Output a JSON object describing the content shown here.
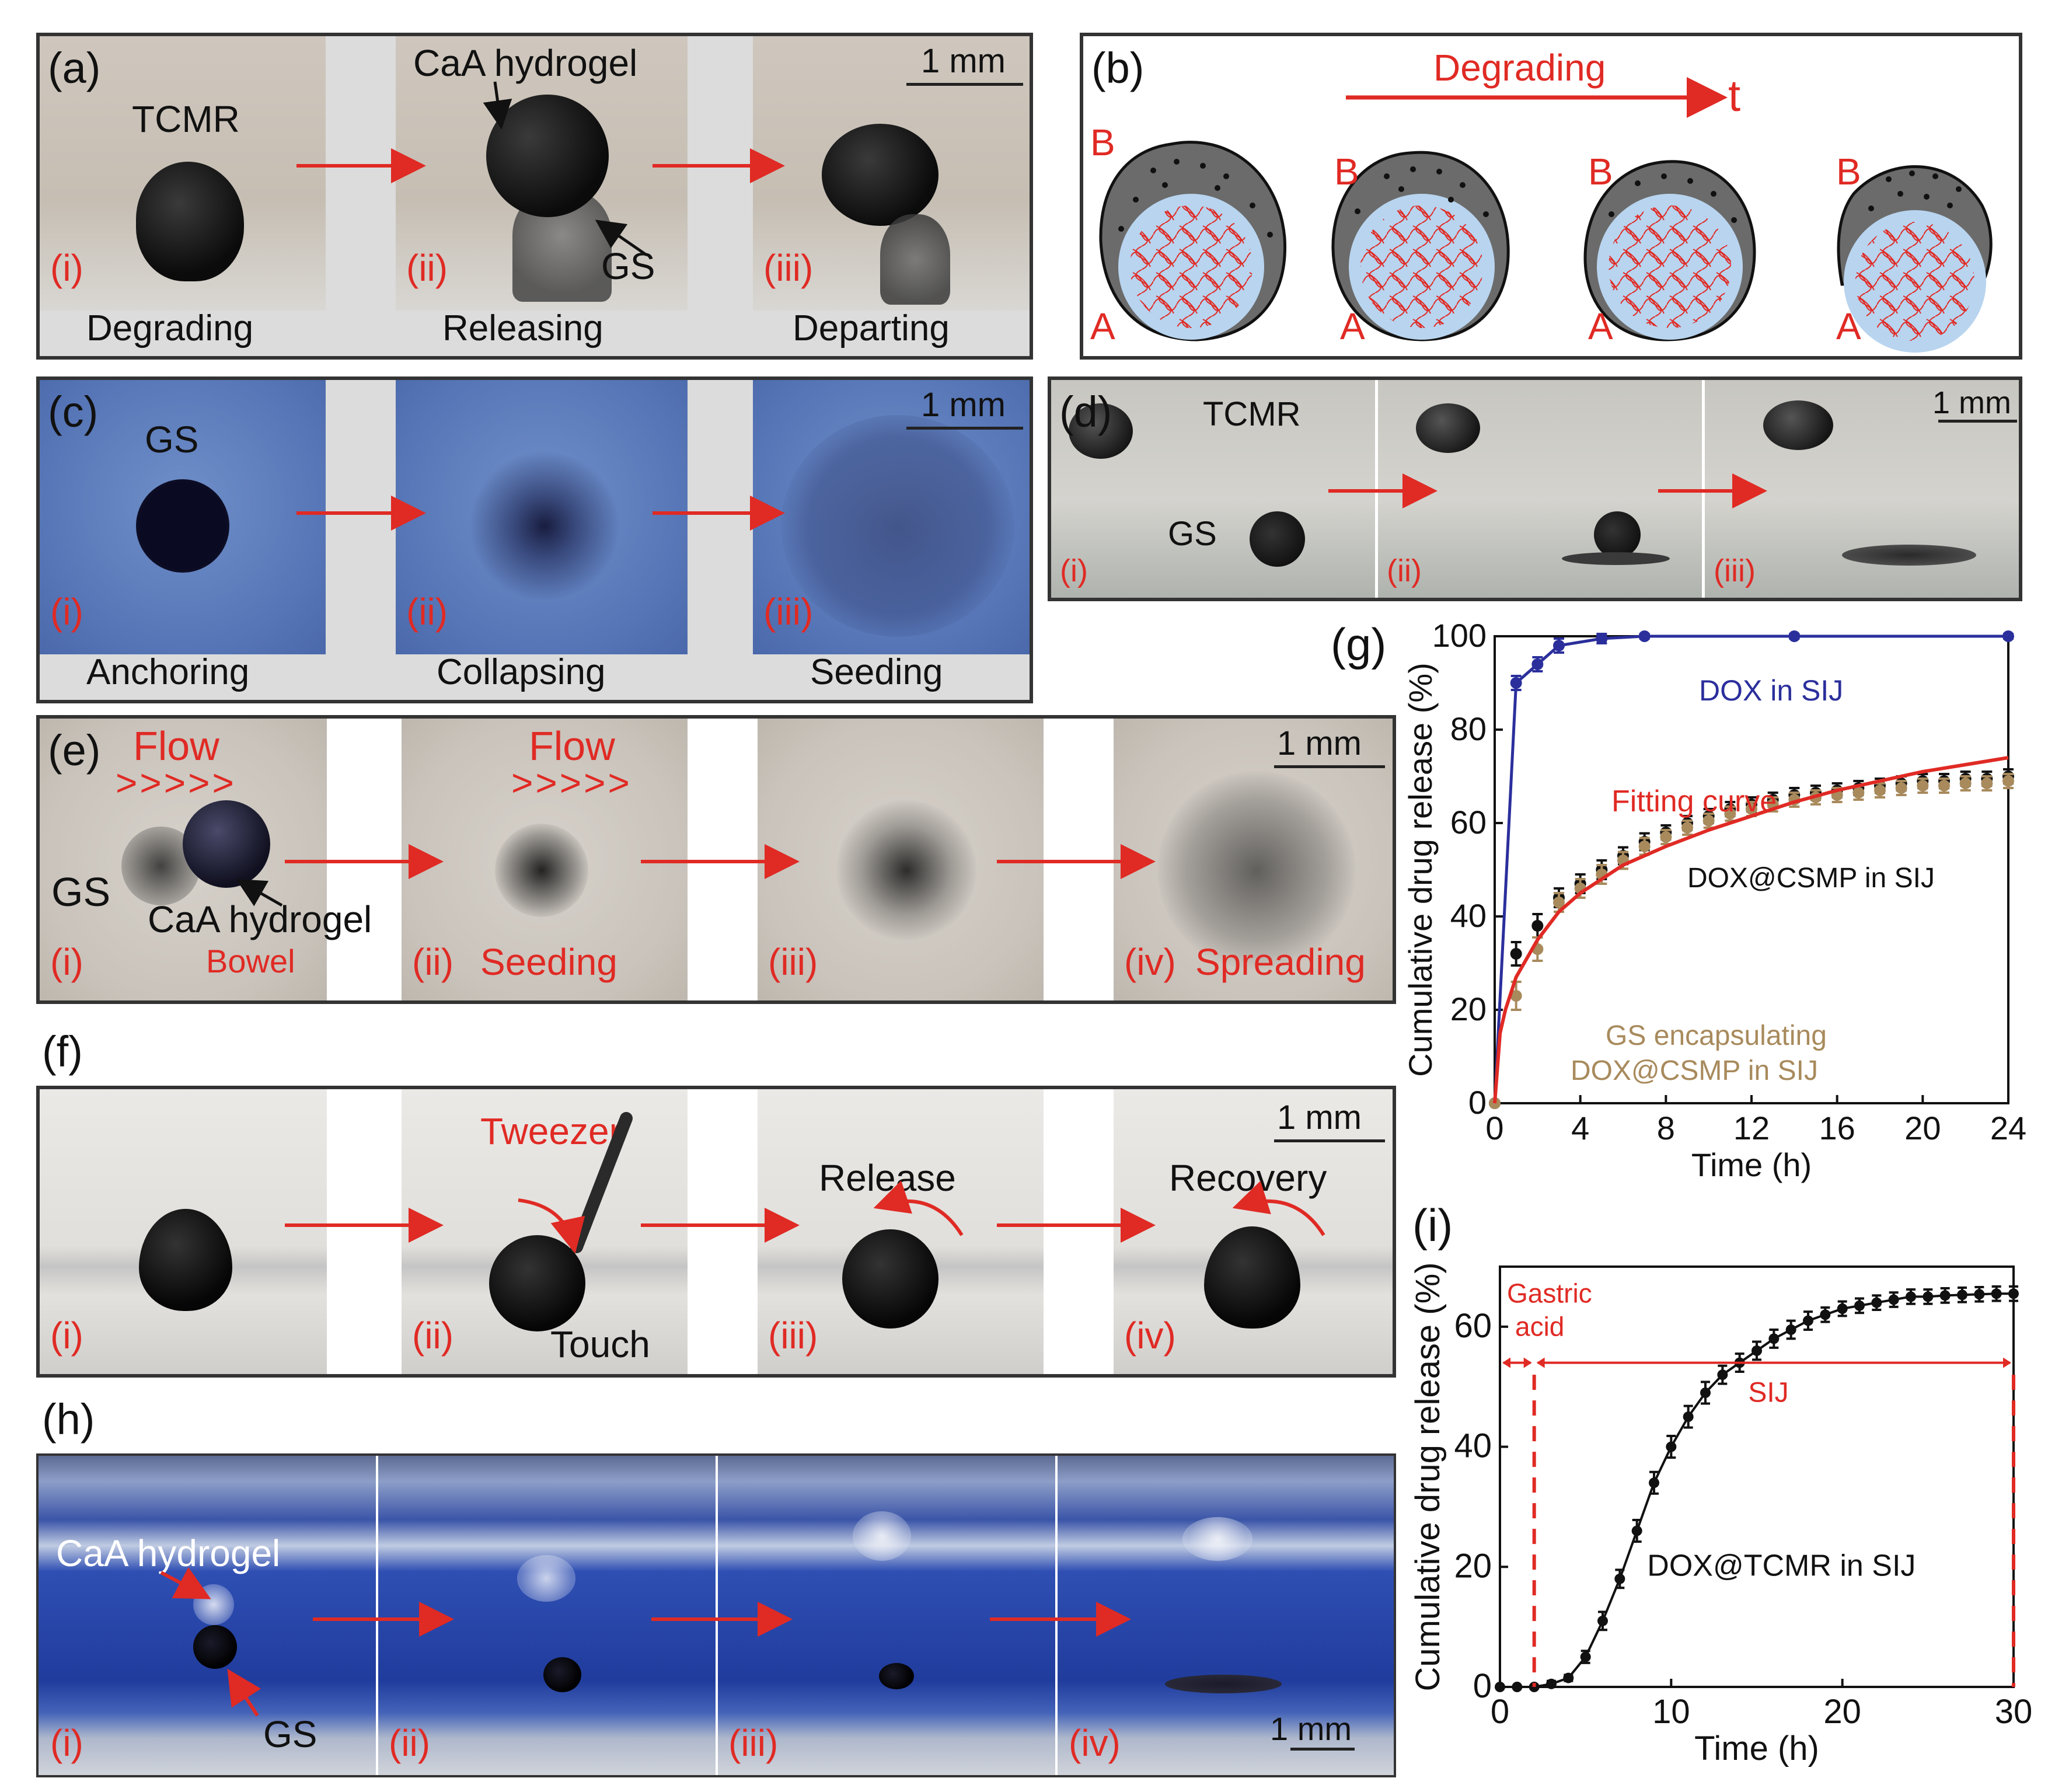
{
  "figure": {
    "panel_a": {
      "label": "(a)",
      "scale": "1 mm",
      "sub": [
        "(i)",
        "(ii)",
        "(iii)"
      ],
      "captions": [
        "Degrading",
        "Releasing",
        "Departing"
      ],
      "annotations": {
        "tcmr": "TCMR",
        "hydrogel": "CaA hydrogel",
        "gs": "GS"
      }
    },
    "panel_b": {
      "label": "(b)",
      "arrow_label": "Degrading",
      "time": "t",
      "label_b": "B",
      "label_a": "A"
    },
    "panel_c": {
      "label": "(c)",
      "scale": "1 mm",
      "gs": "GS",
      "sub": [
        "(i)",
        "(ii)",
        "(iii)"
      ],
      "captions": [
        "Anchoring",
        "Collapsing",
        "Seeding"
      ]
    },
    "panel_d": {
      "label": "(d)",
      "scale": "1 mm",
      "tcmr": "TCMR",
      "gs": "GS",
      "sub": [
        "(i)",
        "(ii)",
        "(iii)"
      ]
    },
    "panel_e": {
      "label": "(e)",
      "scale": "1 mm",
      "flow": "Flow",
      "chevrons": ">>>>>",
      "gs": "GS",
      "hydrogel": "CaA hydrogel",
      "bowel": "Bowel",
      "sub": [
        "(i)",
        "(ii)",
        "(iii)",
        "(iv)"
      ],
      "seeding": "Seeding",
      "spreading": "Spreading"
    },
    "panel_f": {
      "label": "(f)",
      "scale": "1 mm",
      "tweezer": "Tweezer",
      "touch": "Touch",
      "release": "Release",
      "recovery": "Recovery",
      "sub": [
        "(i)",
        "(ii)",
        "(iii)",
        "(iv)"
      ]
    },
    "panel_g": {
      "label": "(g)"
    },
    "panel_h": {
      "label": "(h)",
      "scale": "1 mm",
      "hydrogel": "CaA hydrogel",
      "gs": "GS",
      "sub": [
        "(i)",
        "(ii)",
        "(iii)",
        "(iv)"
      ]
    },
    "panel_i": {
      "label": "(i)"
    }
  },
  "chart_data": [
    {
      "type": "line",
      "panel": "(g)",
      "title": "",
      "xlabel": "Time (h)",
      "ylabel": "Cumulative drug release (%)",
      "xlim": [
        0,
        24
      ],
      "ylim": [
        0,
        100
      ],
      "xticks": [
        0,
        4,
        8,
        12,
        16,
        20,
        24
      ],
      "yticks": [
        0,
        20,
        40,
        60,
        80,
        100
      ],
      "series": [
        {
          "name": "DOX in SIJ",
          "color": "#2b2f9c",
          "x": [
            0,
            1,
            2,
            3,
            5,
            7,
            14,
            24
          ],
          "y": [
            0,
            90,
            94,
            98,
            99.5,
            100,
            100,
            100
          ],
          "err": [
            0,
            1.5,
            1.5,
            1.5,
            1,
            0.5,
            0.5,
            0.5
          ]
        },
        {
          "name": "DOX@CSMP in SIJ",
          "color": "#111111",
          "x": [
            0,
            1,
            2,
            3,
            4,
            5,
            6,
            7,
            8,
            9,
            10,
            11,
            12,
            13,
            14,
            15,
            16,
            17,
            18,
            19,
            20,
            21,
            22,
            23,
            24
          ],
          "y": [
            0,
            32,
            38,
            44,
            47,
            50,
            53,
            56,
            58,
            60,
            61.5,
            63,
            64,
            65,
            66,
            66.5,
            67,
            67.5,
            68,
            68.5,
            69,
            69,
            69.5,
            69.5,
            70
          ],
          "err": [
            0,
            2.5,
            2.5,
            2,
            2,
            2,
            1.8,
            1.8,
            1.5,
            1.5,
            1.5,
            1.5,
            1.5,
            1.5,
            1.5,
            1.5,
            1.5,
            1.5,
            1.5,
            1.5,
            1.5,
            1.5,
            1.5,
            1.5,
            1.5
          ]
        },
        {
          "name": "GS encapsulating DOX@CSMP in SIJ",
          "color": "#a88a5c",
          "x": [
            0,
            1,
            2,
            3,
            4,
            5,
            6,
            7,
            8,
            9,
            10,
            11,
            12,
            13,
            14,
            15,
            16,
            17,
            18,
            19,
            20,
            21,
            22,
            23,
            24
          ],
          "y": [
            0,
            23,
            33,
            43,
            46,
            49,
            52,
            55,
            57,
            59,
            60.5,
            62,
            63,
            64,
            65,
            65.5,
            66,
            66.5,
            67,
            67.5,
            68,
            68,
            68.5,
            68.5,
            69
          ],
          "err": [
            0,
            3,
            2.5,
            2,
            2,
            2,
            1.8,
            1.8,
            1.5,
            1.5,
            1.5,
            1.5,
            1.5,
            1.5,
            1.5,
            1.5,
            1.5,
            1.5,
            1.5,
            1.5,
            1.5,
            1.5,
            1.5,
            1.5,
            1.5
          ]
        },
        {
          "name": "Fitting curve",
          "color": "#e02a24",
          "x": [
            0,
            0.25,
            0.5,
            1,
            2,
            3,
            4,
            6,
            8,
            10,
            12,
            14,
            16,
            18,
            20,
            22,
            24
          ],
          "y": [
            0,
            15,
            20,
            27,
            35,
            41,
            45,
            51,
            55,
            58.5,
            61.5,
            64.5,
            67,
            69,
            71,
            72.5,
            74
          ]
        }
      ],
      "annotations": [
        "DOX in SIJ",
        "Fitting curve",
        "DOX@CSMP in SIJ",
        "GS encapsulating",
        "DOX@CSMP in SIJ"
      ]
    },
    {
      "type": "line",
      "panel": "(i)",
      "title": "",
      "xlabel": "Time (h)",
      "ylabel": "Cumulative drug release (%)",
      "xlim": [
        0,
        30
      ],
      "ylim": [
        0,
        70
      ],
      "xticks": [
        0,
        10,
        20,
        30
      ],
      "yticks": [
        0,
        20,
        40,
        60
      ],
      "series": [
        {
          "name": "DOX@TCMR in SIJ",
          "color": "#111111",
          "x": [
            0,
            1,
            2,
            3,
            4,
            5,
            6,
            7,
            8,
            9,
            10,
            11,
            12,
            13,
            14,
            15,
            16,
            17,
            18,
            19,
            20,
            21,
            22,
            23,
            24,
            25,
            26,
            27,
            28,
            29,
            30
          ],
          "y": [
            0,
            0,
            0,
            0.5,
            1.5,
            5,
            11,
            18,
            26,
            34,
            40,
            45,
            49,
            52,
            54,
            56,
            58,
            59.5,
            61,
            62,
            63,
            63.5,
            64,
            64.5,
            65,
            65,
            65.2,
            65.3,
            65.4,
            65.5,
            65.5
          ],
          "err": [
            0,
            0,
            0,
            0.5,
            0.5,
            1,
            1.5,
            1.5,
            1.8,
            1.8,
            1.8,
            1.8,
            1.8,
            1.5,
            1.5,
            1.5,
            1.5,
            1.5,
            1.5,
            1.2,
            1.2,
            1.2,
            1.2,
            1.2,
            1.2,
            1.2,
            1.2,
            1.2,
            1.2,
            1.2,
            1.2
          ]
        }
      ],
      "phase_markers": [
        {
          "x": 2
        },
        {
          "x": 30
        }
      ],
      "annotations": [
        "Gastric",
        "acid",
        "SIJ",
        "DOX@TCMR in SIJ"
      ]
    }
  ]
}
